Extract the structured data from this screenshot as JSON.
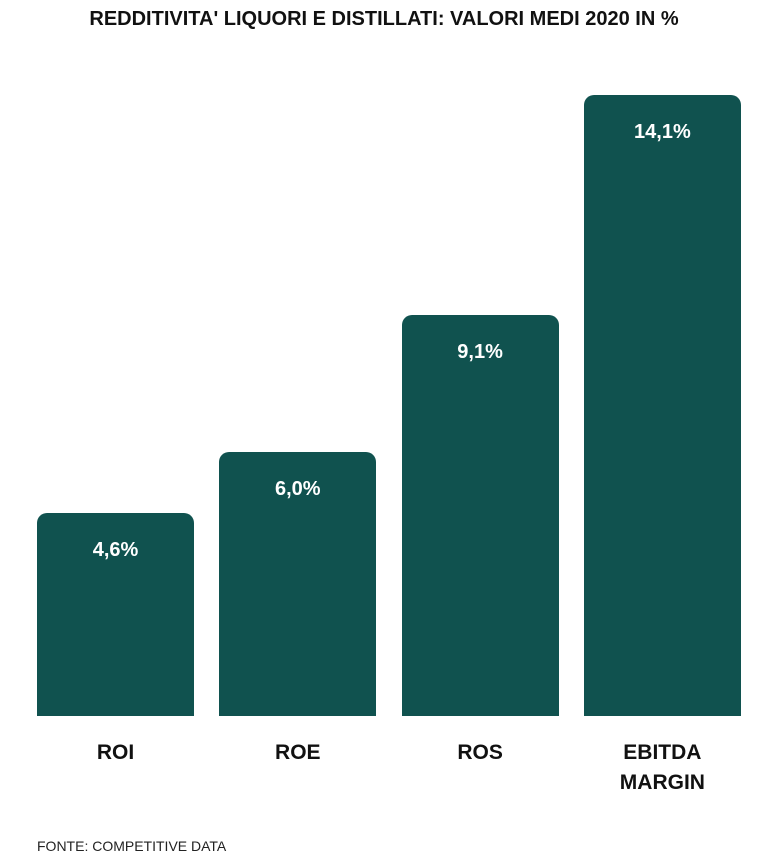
{
  "chart_data": {
    "type": "bar",
    "title": "REDDITIVITA' LIQUORI E DISTILLATI: VALORI MEDI 2020 IN %",
    "categories": [
      "ROI",
      "ROE",
      "ROS",
      "EBITDA MARGIN"
    ],
    "values": [
      4.6,
      6.0,
      9.1,
      14.1
    ],
    "value_labels": [
      "4,6%",
      "6,0%",
      "9,1%",
      "14,1%"
    ],
    "color": "#10524f",
    "source": "FONTE: COMPETITIVE DATA"
  }
}
